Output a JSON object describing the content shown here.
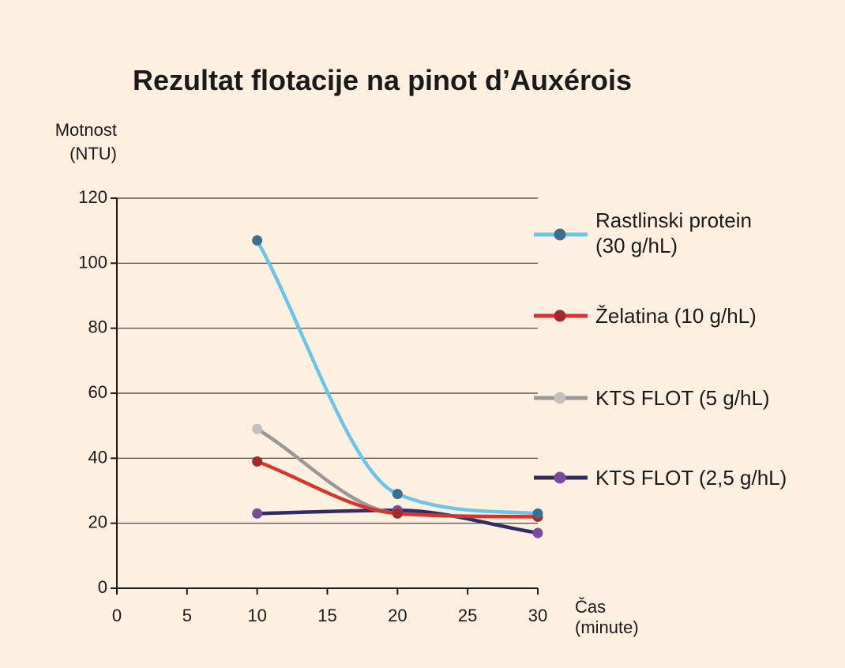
{
  "chart_data": {
    "type": "line",
    "title": "Rezultat flotacije na pinot d’Auxérois",
    "ylabel_line1": "Motnost",
    "ylabel_line2": "(NTU)",
    "xlabel_line1": "Čas",
    "xlabel_line2": "(minute)",
    "xlim": [
      0,
      30
    ],
    "ylim": [
      0,
      120
    ],
    "x_ticks": [
      0,
      5,
      10,
      15,
      20,
      25,
      30
    ],
    "x_tick_labels": [
      "0",
      "5",
      "10",
      "15",
      "20",
      "25",
      "30"
    ],
    "y_ticks": [
      0,
      20,
      40,
      60,
      80,
      100,
      120
    ],
    "y_tick_labels": [
      "0",
      "20",
      "40",
      "60",
      "80",
      "100",
      "120"
    ],
    "grid": "horizontal",
    "legend_position": "right",
    "x": [
      10,
      20,
      30
    ],
    "series": [
      {
        "legend_line1": "Rastlinski protein",
        "legend_line2": "(30 g/hL)",
        "values": [
          107,
          29,
          23
        ],
        "line_color": "#6cc4e8",
        "marker_color": "#3b6f8e"
      },
      {
        "legend_line1": "Želatina (10 g/hL)",
        "legend_line2": "",
        "values": [
          39,
          23,
          22
        ],
        "line_color": "#d7342b",
        "marker_color": "#a5292a"
      },
      {
        "legend_line1": "KTS FLOT (5 g/hL)",
        "legend_line2": "",
        "values": [
          49,
          23,
          22
        ],
        "line_color": "#9b9797",
        "marker_color": "#c5c0c0"
      },
      {
        "legend_line1": "KTS FLOT (2,5 g/hL)",
        "legend_line2": "",
        "values": [
          23,
          24,
          17
        ],
        "line_color": "#2f2d62",
        "marker_color": "#7b4a9a"
      }
    ]
  }
}
